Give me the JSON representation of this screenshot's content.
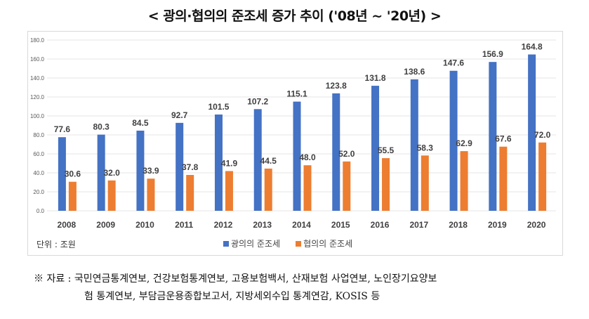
{
  "title": "< 광의·협의의 준조세 증가 추이 ('08년 ~ '20년) >",
  "unit_label": "단위 : 조원",
  "note": {
    "line1": "※ 자료 : 국민연금통계연보, 건강보험통계연보, 고용보험백서, 산재보험 사업연보, 노인장기요양보",
    "line2": "험 통계연보, 부담금운용종합보고서, 지방세외수입 통계연감, KOSIS 등"
  },
  "chart_data": {
    "type": "bar",
    "title": "광의·협의의 준조세 증가 추이 ('08년 ~ '20년)",
    "categories": [
      "2008",
      "2009",
      "2010",
      "2011",
      "2012",
      "2013",
      "2014",
      "2015",
      "2016",
      "2017",
      "2018",
      "2019",
      "2020"
    ],
    "series": [
      {
        "name": "광의의 준조세",
        "color": "#4472C4",
        "values": [
          77.6,
          80.3,
          84.5,
          92.7,
          101.5,
          107.2,
          115.1,
          123.8,
          131.8,
          138.6,
          147.6,
          156.9,
          164.8
        ]
      },
      {
        "name": "협의의 준조세",
        "color": "#ED7D31",
        "values": [
          30.6,
          32.0,
          33.9,
          37.8,
          41.9,
          44.5,
          48.0,
          52.0,
          55.5,
          58.3,
          62.9,
          67.6,
          72.0
        ]
      }
    ],
    "ylim": [
      0,
      180
    ],
    "yticks": [
      "0.0",
      "20.0",
      "40.0",
      "60.0",
      "80.0",
      "100.0",
      "120.0",
      "140.0",
      "160.0",
      "180.0"
    ],
    "grid": true,
    "legend": "bottom",
    "ylabel": "단위 : 조원"
  }
}
